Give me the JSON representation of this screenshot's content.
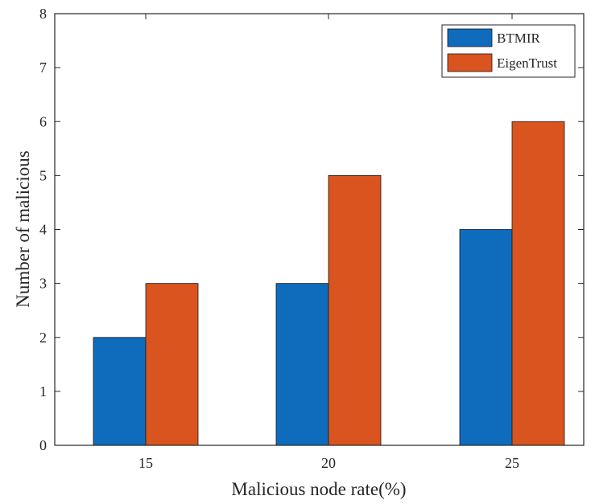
{
  "chart_data": {
    "type": "bar",
    "categories": [
      "15",
      "20",
      "25"
    ],
    "series": [
      {
        "name": "BTMIR",
        "values": [
          2,
          3,
          4
        ],
        "color": "#0f6cbd"
      },
      {
        "name": "EigenTrust",
        "values": [
          3,
          5,
          6
        ],
        "color": "#d9541e"
      }
    ],
    "xlabel": "Malicious node rate(%)",
    "ylabel": "Number of malicious",
    "ylim": [
      0,
      8
    ],
    "yticks": [
      "0",
      "1",
      "2",
      "3",
      "4",
      "5",
      "6",
      "7",
      "8"
    ],
    "grid": false,
    "legend_position": "top-right"
  }
}
